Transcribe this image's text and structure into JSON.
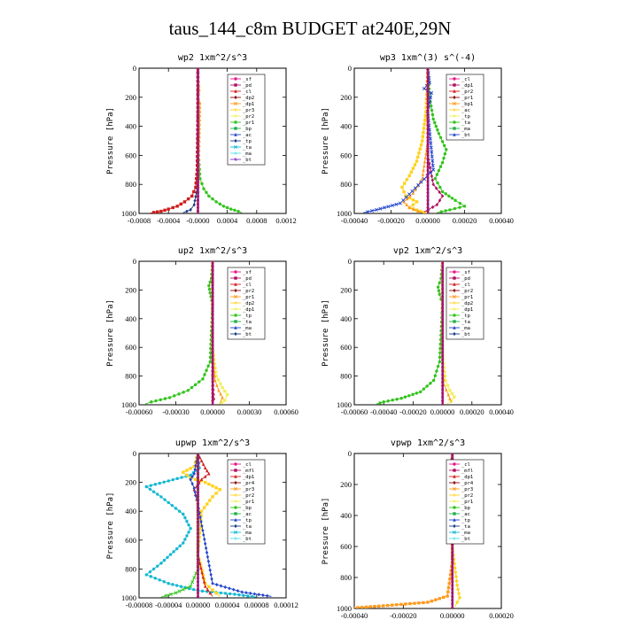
{
  "title": "taus_144_c8m  BUDGET at240E,29N",
  "colors": {
    "c1": "#e8198c",
    "c2": "#b01060",
    "c3": "#d21a1a",
    "c4": "#8a0e0e",
    "c5": "#ff9a1e",
    "c6": "#ffd21e",
    "c7": "#f2f05a",
    "c8": "#31c41b",
    "c9": "#23b04a",
    "c10": "#2244cc",
    "c11": "#1c3f86",
    "c12": "#16b8d2",
    "c13": "#4ee0ee",
    "c14": "#7b2fbf"
  },
  "chart_data": [
    {
      "type": "line",
      "title": "wp2   1xm^2/s^3",
      "ylabel": "Pressure [hPa]",
      "ylim": [
        1000,
        0
      ],
      "xlim": [
        -0.0008,
        0.0012
      ],
      "xticks": [
        "-0.0008",
        "-0.0004",
        "-0.0000",
        "0.0004",
        "0.0008",
        "0.0012"
      ],
      "yticks": [
        "0",
        "200",
        "400",
        "600",
        "800",
        "1000"
      ],
      "legend": [
        "_sf",
        "_pd",
        "_cl",
        "_dp2",
        "_dp1",
        "_pr3",
        "_pr2",
        "_pr1",
        "_bp",
        "_ac",
        "_tp",
        "_ta",
        "_ma",
        "_bt"
      ],
      "series": [
        {
          "name": "_bp",
          "color": "c8",
          "x": [
            0,
            0,
            1e-05,
            3e-05,
            8e-05,
            0.00015,
            0.00025,
            0.00035,
            0.00045,
            0.00055,
            0.0006
          ],
          "y": [
            0,
            300,
            600,
            760,
            830,
            880,
            920,
            950,
            970,
            985,
            995
          ]
        },
        {
          "name": "_dp1",
          "color": "c3",
          "x": [
            0,
            0,
            -1e-05,
            -3e-05,
            -8e-05,
            -0.00018,
            -0.00028,
            -0.0004,
            -0.0005,
            -0.0006,
            -0.00065
          ],
          "y": [
            0,
            300,
            700,
            820,
            880,
            920,
            950,
            970,
            985,
            993,
            998
          ]
        },
        {
          "name": "_pr3",
          "color": "c5",
          "x": [
            0,
            2e-05,
            1e-05,
            3e-05,
            2e-05,
            0
          ],
          "y": [
            0,
            150,
            200,
            240,
            500,
            1000
          ]
        },
        {
          "name": "_ta",
          "color": "c11",
          "x": [
            0,
            0,
            -5e-05,
            -0.0001,
            -0.0002
          ],
          "y": [
            0,
            800,
            940,
            975,
            995
          ]
        },
        {
          "name": "_bt",
          "color": "c14",
          "x": [
            0,
            0,
            0,
            0
          ],
          "y": [
            0,
            400,
            800,
            1000
          ]
        }
      ]
    },
    {
      "type": "line",
      "title": "wp3   1xm^(3) s^(-4)",
      "ylabel": "Pressure [hPa]",
      "ylim": [
        1000,
        0
      ],
      "xlim": [
        -0.0004,
        0.0004
      ],
      "xticks": [
        "-0.00040",
        "-0.00020",
        "0.00000",
        "0.00020",
        "0.00040"
      ],
      "yticks": [
        "0",
        "200",
        "400",
        "600",
        "800",
        "1000"
      ],
      "legend": [
        "_cl",
        "_dp1",
        "_pr2",
        "_pr1",
        "_bp1",
        "_ac",
        "_tp",
        "_ta",
        "_ma",
        "_bt"
      ],
      "series": [
        {
          "name": "_ac",
          "color": "c8",
          "x": [
            0,
            1e-05,
            3e-05,
            6e-05,
            0.0001,
            8e-05,
            4e-05,
            8e-05,
            0.00015,
            0.0002,
            0.00012,
            5e-05
          ],
          "y": [
            0,
            200,
            350,
            450,
            560,
            650,
            760,
            850,
            910,
            950,
            975,
            995
          ]
        },
        {
          "name": "_pr1",
          "color": "c6",
          "x": [
            0,
            -1e-05,
            -3e-05,
            -6e-05,
            -0.0001,
            -0.00014,
            -0.00012,
            -6e-05,
            -0.0001,
            -4e-05,
            0
          ],
          "y": [
            0,
            300,
            500,
            640,
            740,
            820,
            880,
            920,
            960,
            985,
            1000
          ]
        },
        {
          "name": "_pr2",
          "color": "c5",
          "x": [
            0,
            0,
            -3e-05,
            -8e-05,
            -0.00013,
            -0.0001,
            -3e-05
          ],
          "y": [
            0,
            500,
            760,
            860,
            920,
            960,
            995
          ]
        },
        {
          "name": "_dp1",
          "color": "c2",
          "x": [
            0,
            0,
            3e-05,
            8e-05,
            5e-05,
            -2e-05
          ],
          "y": [
            0,
            600,
            800,
            880,
            940,
            990
          ]
        },
        {
          "name": "_tp",
          "color": "c10",
          "x": [
            0,
            1e-05,
            -2e-05,
            2e-05,
            0,
            3e-05,
            -0.00015,
            -0.00028,
            -0.00035
          ],
          "y": [
            0,
            100,
            140,
            170,
            300,
            700,
            930,
            975,
            995
          ]
        },
        {
          "name": "_bt",
          "color": "c14",
          "x": [
            0,
            0,
            0,
            0
          ],
          "y": [
            0,
            400,
            800,
            1000
          ]
        }
      ]
    },
    {
      "type": "line",
      "title": "up2   1xm^2/s^3",
      "ylabel": "Pressure [hPa]",
      "ylim": [
        1000,
        0
      ],
      "xlim": [
        -0.0006,
        0.0006
      ],
      "xticks": [
        "-0.00060",
        "-0.00030",
        "0.00000",
        "0.00030",
        "0.00060"
      ],
      "yticks": [
        "0",
        "200",
        "400",
        "600",
        "800",
        "1000"
      ],
      "legend": [
        "_sf",
        "_pd",
        "_cl",
        "_pr2",
        "_pr1",
        "_dp2",
        "_dp1",
        "_tp",
        "_ta",
        "_ma",
        "_bt"
      ],
      "series": [
        {
          "name": "_dp1",
          "color": "c8",
          "x": [
            0,
            -1e-05,
            -3e-05,
            -2e-05,
            0,
            -2e-05,
            -8e-05,
            -0.0002,
            -0.00035,
            -0.0005,
            -0.00055
          ],
          "y": [
            0,
            120,
            170,
            220,
            300,
            700,
            820,
            900,
            950,
            980,
            995
          ]
        },
        {
          "name": "_pr2",
          "color": "c7",
          "x": [
            0,
            0,
            3e-05,
            8e-05,
            0.00012,
            0.0001,
            5e-05
          ],
          "y": [
            0,
            600,
            800,
            880,
            930,
            970,
            995
          ]
        },
        {
          "name": "_pr1",
          "color": "c5",
          "x": [
            0,
            0,
            2e-05,
            5e-05,
            8e-05,
            6e-05
          ],
          "y": [
            0,
            650,
            830,
            900,
            950,
            990
          ]
        },
        {
          "name": "_sf",
          "color": "c3",
          "x": [
            0,
            0,
            0,
            1e-05,
            0
          ],
          "y": [
            0,
            400,
            800,
            960,
            1000
          ]
        },
        {
          "name": "_bt",
          "color": "c14",
          "x": [
            0,
            0,
            0,
            0
          ],
          "y": [
            0,
            400,
            800,
            1000
          ]
        }
      ]
    },
    {
      "type": "line",
      "title": "vp2   1xm^2/s^3",
      "ylabel": "Pressure [hPa]",
      "ylim": [
        1000,
        0
      ],
      "xlim": [
        -0.0006,
        0.0004
      ],
      "xticks": [
        "-0.00060",
        "-0.00040",
        "-0.00020",
        "0.00000",
        "0.00020",
        "0.00040"
      ],
      "yticks": [
        "0",
        "200",
        "400",
        "600",
        "800",
        "1000"
      ],
      "legend": [
        "_sf",
        "_pd",
        "_cl",
        "_pr2",
        "_pr1",
        "_dp2",
        "_dp1",
        "_tp",
        "_ta",
        "_ma",
        "_bt"
      ],
      "series": [
        {
          "name": "_dp1",
          "color": "c8",
          "x": [
            0,
            -1e-05,
            -3e-05,
            -2e-05,
            0,
            -2e-05,
            -6e-05,
            -0.00015,
            -0.00028,
            -0.0004,
            -0.00045
          ],
          "y": [
            0,
            120,
            180,
            230,
            300,
            700,
            830,
            910,
            955,
            980,
            995
          ]
        },
        {
          "name": "_pr2",
          "color": "c7",
          "x": [
            0,
            0,
            2e-05,
            5e-05,
            8e-05,
            6e-05,
            3e-05
          ],
          "y": [
            0,
            650,
            830,
            900,
            945,
            975,
            995
          ]
        },
        {
          "name": "_pr1",
          "color": "c5",
          "x": [
            0,
            0,
            1e-05,
            4e-05,
            6e-05
          ],
          "y": [
            0,
            700,
            860,
            930,
            985
          ]
        },
        {
          "name": "_bt",
          "color": "c14",
          "x": [
            0,
            0,
            0,
            0
          ],
          "y": [
            0,
            400,
            800,
            1000
          ]
        }
      ]
    },
    {
      "type": "line",
      "title": "upwp   1xm^2/s^3",
      "ylabel": "Pressure [hPa]",
      "ylim": [
        1000,
        0
      ],
      "xlim": [
        -8e-05,
        0.00012
      ],
      "xticks": [
        "-0.00008",
        "-0.00004",
        "0.00000",
        "0.00004",
        "0.00008",
        "0.00012"
      ],
      "yticks": [
        "0",
        "200",
        "400",
        "600",
        "800",
        "1000"
      ],
      "legend": [
        "_cl",
        "_mfl",
        "_dp1",
        "_pr4",
        "_pr3",
        "_pr2",
        "_pr1",
        "_bp",
        "_ac",
        "_tp",
        "_ta",
        "_ma",
        "_bt"
      ],
      "series": [
        {
          "name": "_ta",
          "color": "c12",
          "x": [
            0,
            2e-06,
            -1e-05,
            -4e-05,
            -7e-05,
            -5e-05,
            -2e-05,
            -1e-05,
            -2e-05,
            -5e-05,
            -7e-05,
            -4e-05,
            0,
            5e-05,
            8e-05
          ],
          "y": [
            0,
            100,
            150,
            190,
            230,
            300,
            420,
            520,
            620,
            760,
            840,
            900,
            950,
            975,
            995
          ]
        },
        {
          "name": "_pr1",
          "color": "c6",
          "x": [
            0,
            -5e-06,
            -2e-05,
            -1e-05,
            1e-05,
            3e-05,
            2e-05,
            5e-06,
            0,
            1e-05,
            3e-05
          ],
          "y": [
            0,
            90,
            130,
            170,
            200,
            250,
            300,
            400,
            700,
            900,
            990
          ]
        },
        {
          "name": "_dp1",
          "color": "c3",
          "x": [
            0,
            1e-05,
            1.5e-05,
            5e-06,
            -5e-06,
            0,
            0,
            1e-05,
            2e-05
          ],
          "y": [
            0,
            100,
            140,
            180,
            250,
            350,
            700,
            920,
            990
          ]
        },
        {
          "name": "_tp",
          "color": "c10",
          "x": [
            0,
            -5e-06,
            -1e-05,
            -5e-06,
            0,
            2e-05,
            6e-05,
            0.0001
          ],
          "y": [
            0,
            140,
            180,
            240,
            350,
            900,
            960,
            990
          ]
        },
        {
          "name": "_bp",
          "color": "c8",
          "x": [
            0,
            0,
            -1e-05,
            -3e-05,
            -5e-05
          ],
          "y": [
            0,
            800,
            920,
            965,
            995
          ]
        },
        {
          "name": "_bt",
          "color": "c14",
          "x": [
            0,
            0,
            0,
            0
          ],
          "y": [
            0,
            400,
            800,
            1000
          ]
        }
      ]
    },
    {
      "type": "line",
      "title": "vpwp   1xm^2/s^3",
      "ylabel": "Pressure [hPa]",
      "ylim": [
        1000,
        0
      ],
      "xlim": [
        -0.0004,
        0.0002
      ],
      "xticks": [
        "-0.00040",
        "-0.00020",
        "0.00000",
        "0.00020"
      ],
      "yticks": [
        "0",
        "200",
        "400",
        "600",
        "800",
        "1000"
      ],
      "legend": [
        "_cl",
        "_mfl",
        "_dp1",
        "_pr4",
        "_pr3",
        "_pr2",
        "_pr1",
        "_bp",
        "_ac",
        "_tp",
        "_ta",
        "_ma",
        "_bt"
      ],
      "series": [
        {
          "name": "_pr1",
          "color": "c6",
          "x": [
            0,
            -1e-05,
            1e-05,
            -1e-05,
            0,
            0,
            2e-05,
            3e-05,
            1e-05
          ],
          "y": [
            0,
            150,
            180,
            210,
            250,
            600,
            850,
            930,
            990
          ]
        },
        {
          "name": "_pr2",
          "color": "c5",
          "x": [
            0,
            0,
            -2e-05,
            -0.0001,
            -0.0003,
            -0.00042
          ],
          "y": [
            0,
            700,
            920,
            960,
            985,
            998
          ]
        },
        {
          "name": "_tp",
          "color": "c10",
          "x": [
            0,
            -1e-05,
            1e-05,
            -1e-05,
            0
          ],
          "y": [
            0,
            160,
            190,
            220,
            300
          ]
        },
        {
          "name": "_ac",
          "color": "c8",
          "x": [
            0,
            5e-06,
            -5e-06,
            5e-06,
            0
          ],
          "y": [
            0,
            170,
            200,
            230,
            260
          ]
        },
        {
          "name": "_bt",
          "color": "c14",
          "x": [
            0,
            0,
            0,
            0
          ],
          "y": [
            0,
            400,
            800,
            1000
          ]
        }
      ]
    }
  ]
}
